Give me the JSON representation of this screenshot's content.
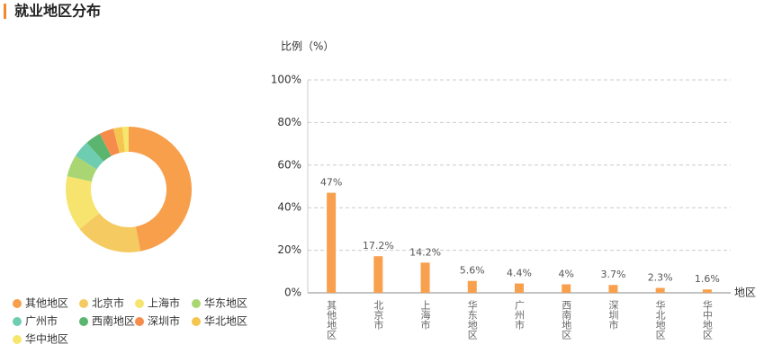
{
  "header": {
    "title": "就业地区分布"
  },
  "chart_data": [
    {
      "type": "pie",
      "categories": [
        "其他地区",
        "北京市",
        "上海市",
        "华东地区",
        "广州市",
        "西南地区",
        "深圳市",
        "华北地区",
        "华中地区"
      ],
      "values": [
        47,
        17.2,
        14.2,
        5.6,
        4.4,
        4,
        3.7,
        2.3,
        1.6
      ],
      "colors": [
        "#f89f4c",
        "#f5ca60",
        "#f6e46e",
        "#a9d672",
        "#6ecdb0",
        "#5bb56f",
        "#f68c4c",
        "#f6c550",
        "#f6e66d"
      ],
      "donut": true
    },
    {
      "type": "bar",
      "y_label": "比例（%）",
      "x_label": "地区",
      "categories": [
        "其他地区",
        "北京市",
        "上海市",
        "华东地区",
        "广州市",
        "西南地区",
        "深圳市",
        "华北地区",
        "华中地区"
      ],
      "values": [
        47,
        17.2,
        14.2,
        5.6,
        4.4,
        4,
        3.7,
        2.3,
        1.6
      ],
      "value_labels": [
        "47%",
        "17.2%",
        "14.2%",
        "5.6%",
        "4.4%",
        "4%",
        "3.7%",
        "2.3%",
        "1.6%"
      ],
      "color": "#f8a04d",
      "ylim": [
        0,
        100
      ],
      "yticks": [
        {
          "value": 0,
          "label": "0%"
        },
        {
          "value": 20,
          "label": "20%"
        },
        {
          "value": 40,
          "label": "40%"
        },
        {
          "value": 60,
          "label": "60%"
        },
        {
          "value": 80,
          "label": "80%"
        },
        {
          "value": 100,
          "label": "100%"
        }
      ],
      "grid": true
    }
  ]
}
